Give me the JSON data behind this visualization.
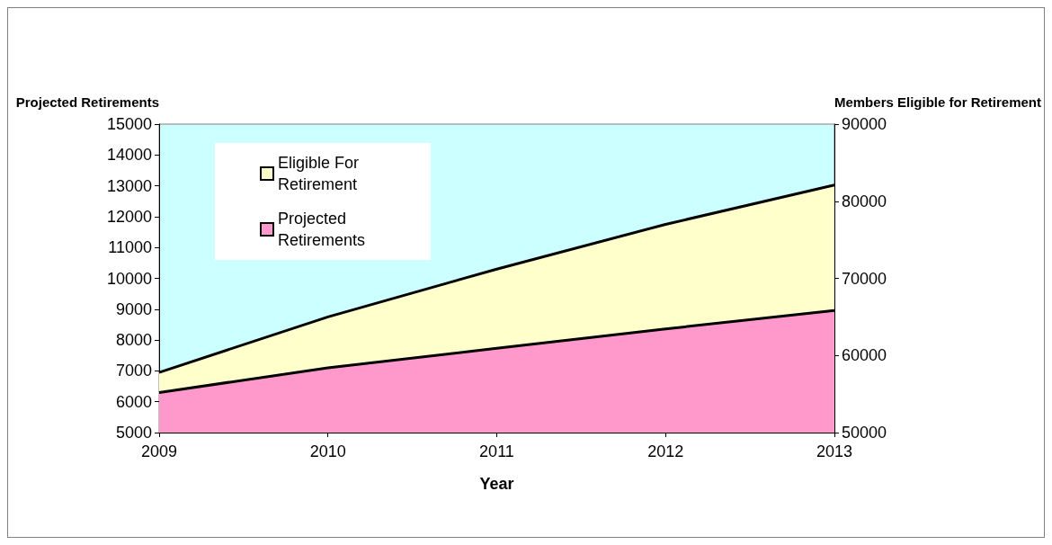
{
  "chart_data": {
    "type": "area",
    "xlabel": "Year",
    "ylabel": "Projected Retirements",
    "y2label": "Members Eligible for Retirement",
    "categories": [
      "2009",
      "2010",
      "2011",
      "2012",
      "2013"
    ],
    "series": [
      {
        "name": "Eligible For Retirement",
        "color": "#ffffcc",
        "axis": "y2",
        "values": [
          57800,
          65000,
          71200,
          77000,
          82100
        ]
      },
      {
        "name": "Projected Retirements",
        "color": "#ff99cc",
        "values": [
          6300,
          7100,
          7730,
          8360,
          8960
        ]
      }
    ],
    "ylim": [
      5000,
      15000
    ],
    "yticks": [
      5000,
      6000,
      7000,
      8000,
      9000,
      10000,
      11000,
      12000,
      13000,
      14000,
      15000
    ],
    "y2lim": [
      50000,
      90000
    ],
    "y2ticks": [
      50000,
      60000,
      70000,
      80000,
      90000
    ],
    "legend": "top left",
    "grid": false
  }
}
